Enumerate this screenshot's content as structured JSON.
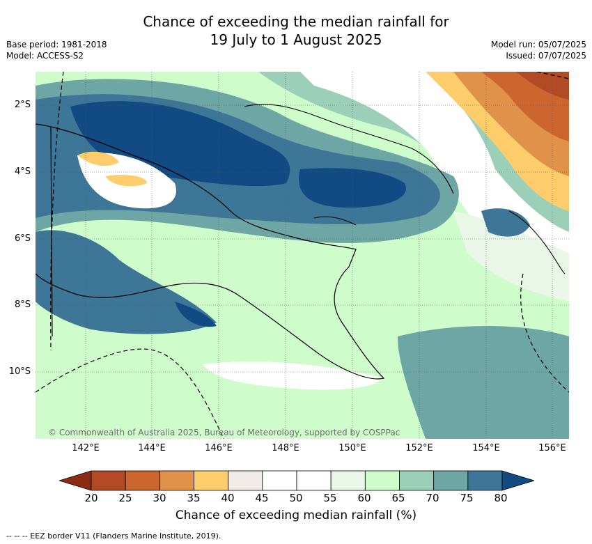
{
  "header": {
    "title_line1": "Chance of exceeding the median rainfall for",
    "title_line2": "19 July to 1 August 2025",
    "base_period": "Base period: 1981-2018",
    "model": "Model: ACCESS-S2",
    "model_run": "Model run: 05/07/2025",
    "issued": "Issued: 07/07/2025"
  },
  "map": {
    "lat_labels": [
      "2°S",
      "4°S",
      "6°S",
      "8°S",
      "10°S"
    ],
    "lon_labels": [
      "142°E",
      "144°E",
      "146°E",
      "148°E",
      "150°E",
      "152°E",
      "154°E",
      "156°E"
    ],
    "lon_range": [
      140.8,
      156.5
    ],
    "lat_range": [
      -12.0,
      -1.0
    ],
    "copyright": "© Commonwealth of Australia 2025, Bureau of Meteorology, supported by COSPPac",
    "grid": "dotted"
  },
  "colorbar": {
    "ticks": [
      "20",
      "25",
      "30",
      "35",
      "40",
      "45",
      "50",
      "55",
      "60",
      "65",
      "70",
      "75",
      "80"
    ],
    "colors": [
      "#8c2b14",
      "#b24a25",
      "#cd652e",
      "#e0914a",
      "#fdcd6b",
      "#f0ebe6",
      "#ffffff",
      "#ffffff",
      "#eaf6e8",
      "#cefcca",
      "#9ccfb7",
      "#6ea6a6",
      "#3e7698",
      "#124b83"
    ],
    "title": "Chance of exceeding median rainfall (%)"
  },
  "legend": {
    "eez": "-- -- -- EEZ border V11 (Flanders Marine Institute, 2019)."
  }
}
